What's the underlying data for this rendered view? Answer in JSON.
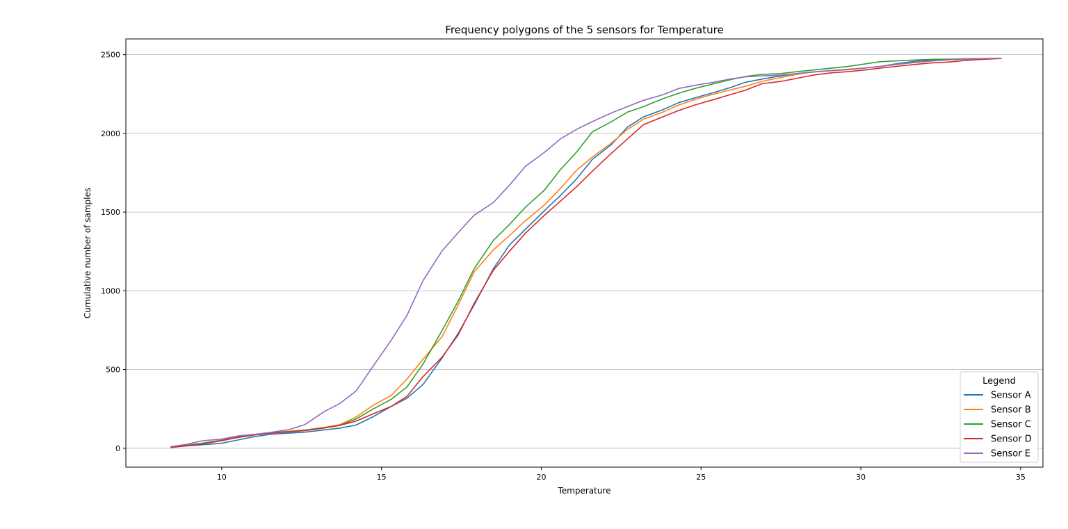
{
  "chart_data": {
    "type": "line",
    "title": "Frequency polygons of the 5 sensors for Temperature",
    "xlabel": "Temperature",
    "ylabel": "Cumulative number of samples",
    "xlim": [
      7.0,
      35.7
    ],
    "ylim": [
      -120,
      2600
    ],
    "xticks": [
      10,
      15,
      20,
      25,
      30,
      35
    ],
    "yticks": [
      0,
      500,
      1000,
      1500,
      2000,
      2500
    ],
    "xtick_labels": [
      "10",
      "15",
      "20",
      "25",
      "30",
      "35"
    ],
    "ytick_labels": [
      "0",
      "500",
      "1000",
      "1500",
      "2000",
      "2500"
    ],
    "grid": "horizontal",
    "legend": {
      "title": "Legend",
      "position": "bottom-right"
    },
    "x": [
      8.4,
      8.9,
      9.4,
      10.0,
      10.5,
      11.0,
      11.5,
      12.1,
      12.6,
      13.2,
      13.7,
      14.2,
      14.7,
      15.3,
      15.8,
      16.3,
      16.9,
      17.4,
      17.9,
      18.5,
      19.0,
      19.5,
      20.1,
      20.6,
      21.1,
      21.6,
      22.2,
      22.7,
      23.2,
      23.8,
      24.3,
      24.8,
      25.4,
      25.9,
      26.4,
      26.9,
      27.5,
      28.0,
      28.5,
      29.1,
      29.6,
      30.1,
      30.6,
      31.2,
      31.7,
      32.2,
      32.8,
      33.3,
      33.8,
      34.4
    ],
    "series": [
      {
        "name": "Sensor A",
        "color": "#1f77b4",
        "values": [
          5,
          15,
          22,
          32,
          52,
          73,
          88,
          96,
          102,
          116,
          128,
          147,
          196,
          265,
          318,
          405,
          575,
          730,
          910,
          1140,
          1290,
          1390,
          1510,
          1605,
          1710,
          1835,
          1930,
          2040,
          2105,
          2150,
          2195,
          2225,
          2260,
          2290,
          2325,
          2345,
          2365,
          2380,
          2390,
          2400,
          2405,
          2415,
          2425,
          2445,
          2458,
          2465,
          2470,
          2472,
          2474,
          2476
        ]
      },
      {
        "name": "Sensor B",
        "color": "#ff7f0e",
        "values": [
          8,
          18,
          32,
          52,
          72,
          86,
          98,
          108,
          116,
          132,
          150,
          198,
          268,
          335,
          440,
          565,
          710,
          910,
          1120,
          1260,
          1350,
          1445,
          1545,
          1650,
          1765,
          1850,
          1940,
          2025,
          2090,
          2135,
          2180,
          2215,
          2250,
          2275,
          2300,
          2330,
          2355,
          2375,
          2390,
          2400,
          2408,
          2415,
          2425,
          2440,
          2452,
          2460,
          2468,
          2472,
          2475,
          2477
        ]
      },
      {
        "name": "Sensor C",
        "color": "#2ca02c",
        "values": [
          8,
          18,
          32,
          50,
          70,
          84,
          96,
          106,
          115,
          130,
          146,
          185,
          245,
          310,
          390,
          535,
          750,
          935,
          1140,
          1320,
          1420,
          1530,
          1640,
          1770,
          1880,
          2010,
          2075,
          2135,
          2170,
          2220,
          2255,
          2285,
          2315,
          2340,
          2362,
          2375,
          2380,
          2392,
          2402,
          2415,
          2425,
          2440,
          2455,
          2462,
          2466,
          2470,
          2472,
          2474,
          2475,
          2477
        ]
      },
      {
        "name": "Sensor D",
        "color": "#d62728",
        "values": [
          5,
          16,
          28,
          48,
          68,
          84,
          96,
          104,
          112,
          128,
          146,
          172,
          215,
          265,
          330,
          455,
          580,
          720,
          920,
          1130,
          1250,
          1365,
          1480,
          1570,
          1660,
          1760,
          1875,
          1965,
          2055,
          2105,
          2145,
          2180,
          2215,
          2245,
          2275,
          2315,
          2330,
          2350,
          2370,
          2385,
          2392,
          2402,
          2414,
          2428,
          2438,
          2447,
          2454,
          2464,
          2470,
          2476
        ]
      },
      {
        "name": "Sensor E",
        "color": "#9467bd",
        "values": [
          10,
          25,
          48,
          58,
          78,
          88,
          100,
          118,
          150,
          232,
          285,
          362,
          510,
          685,
          845,
          1065,
          1255,
          1370,
          1480,
          1560,
          1670,
          1790,
          1880,
          1965,
          2025,
          2075,
          2130,
          2170,
          2210,
          2245,
          2285,
          2305,
          2325,
          2345,
          2360,
          2365,
          2370,
          2380,
          2390,
          2398,
          2405,
          2415,
          2425,
          2440,
          2450,
          2460,
          2468,
          2472,
          2475,
          2477
        ]
      }
    ]
  }
}
